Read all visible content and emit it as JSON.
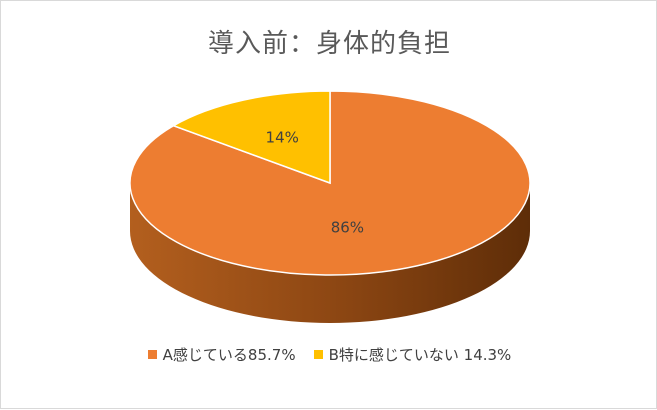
{
  "chart_data": {
    "type": "pie",
    "title": "導入前：身体的負担",
    "categories": [
      "A感じている85.7%",
      "B特に感じていない 14.3%"
    ],
    "values": [
      85.7,
      14.3
    ],
    "data_labels": [
      "86%",
      "14%"
    ],
    "colors": [
      "#ed7d31",
      "#ffc000"
    ],
    "legend_position": "bottom",
    "style": "3d"
  }
}
